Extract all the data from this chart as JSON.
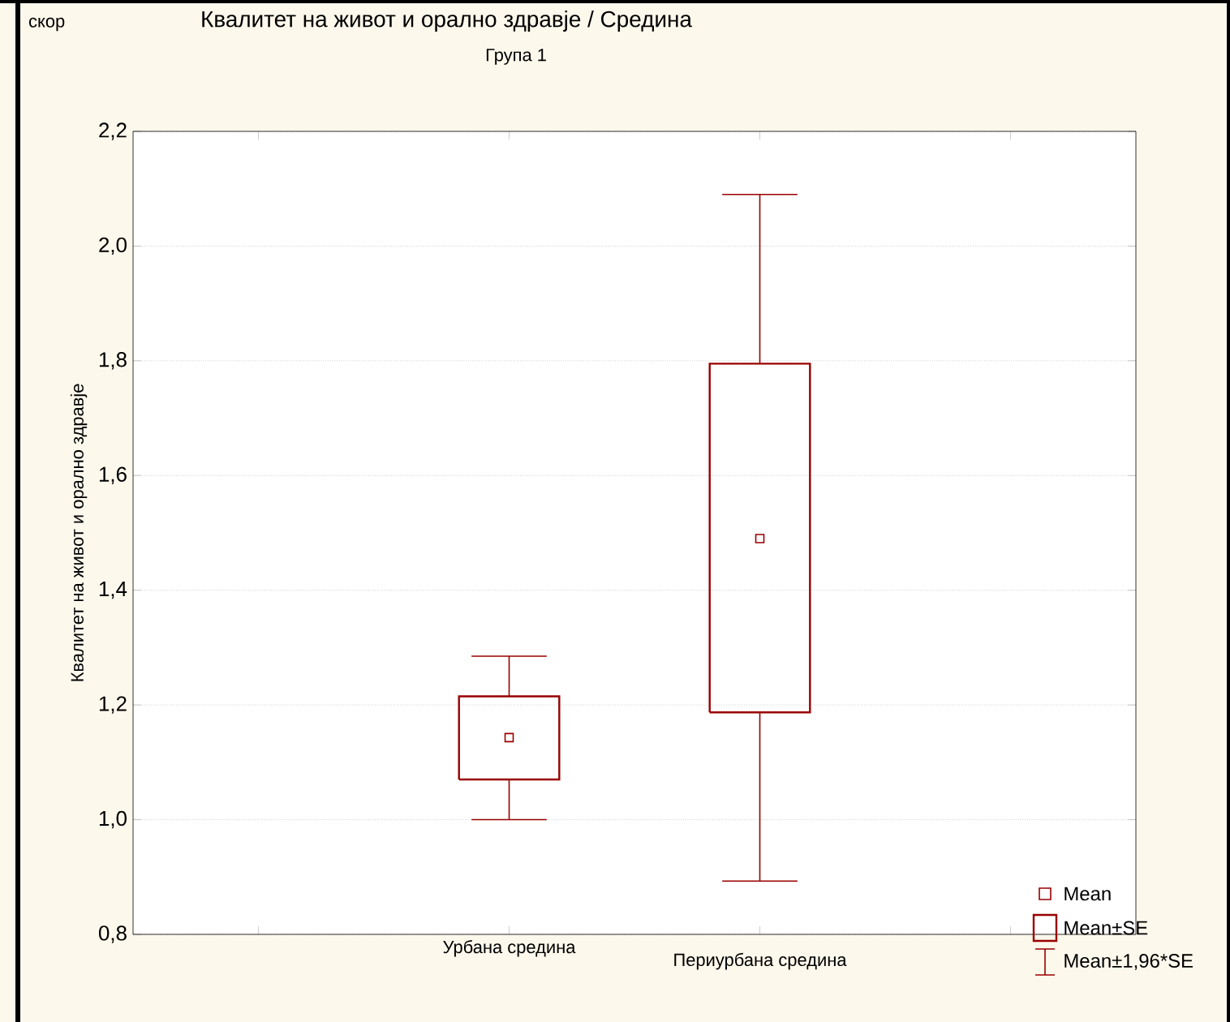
{
  "chart_data": {
    "type": "box",
    "title": "Квалитет на живот и орално здравје  / Средина",
    "subtitle": "Група 1",
    "ylabel": "Квалитет на живот и орално здравје",
    "categories": [
      "Урбана средина",
      "Периурбана средина"
    ],
    "boxes": [
      {
        "low": 1.0,
        "q1": 1.07,
        "mean": 1.143,
        "q3": 1.215,
        "high": 1.285
      },
      {
        "low": 0.893,
        "q1": 1.187,
        "mean": 1.49,
        "q3": 1.795,
        "high": 2.09
      }
    ],
    "color": "#990000",
    "marker": "square",
    "ylim": [
      0.8,
      2.2
    ],
    "yticks": [
      {
        "value": 0.8,
        "label": "0,8"
      },
      {
        "value": 1.0,
        "label": "1,0"
      },
      {
        "value": 1.2,
        "label": "1,2"
      },
      {
        "value": 1.4,
        "label": "1,4"
      },
      {
        "value": 1.6,
        "label": "1,6"
      },
      {
        "value": 1.8,
        "label": "1,8"
      },
      {
        "value": 2.0,
        "label": "2,0"
      },
      {
        "value": 2.2,
        "label": "2,2"
      }
    ],
    "grid": "y",
    "annotations": [
      "скор",
      "Mean",
      "Mean±SE",
      "Mean±1,96*SE"
    ]
  }
}
